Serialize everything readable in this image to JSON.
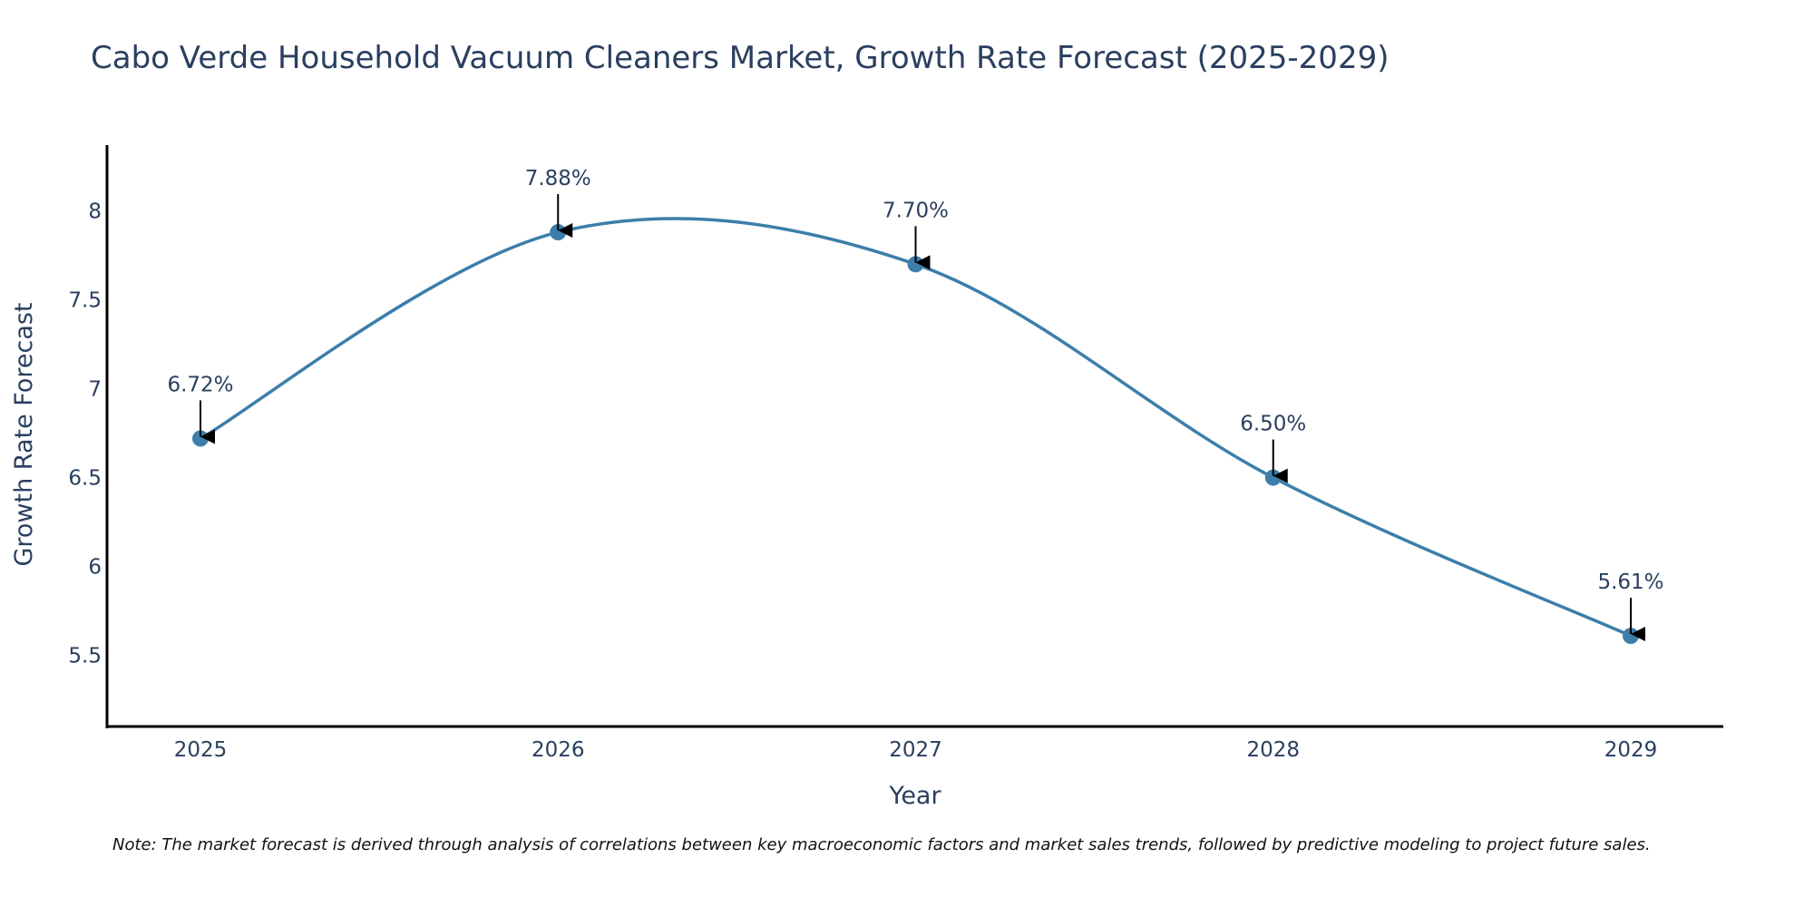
{
  "chart_data": {
    "type": "line",
    "title": "Cabo Verde Household Vacuum Cleaners Market, Growth Rate Forecast (2025-2029)",
    "xlabel": "Year",
    "ylabel": "Growth Rate Forecast",
    "categories": [
      "2025",
      "2026",
      "2027",
      "2028",
      "2029"
    ],
    "series": [
      {
        "name": "Growth Rate Forecast",
        "values": [
          6.72,
          7.88,
          7.7,
          6.5,
          5.61
        ],
        "labels": [
          "6.72%",
          "7.88%",
          "7.70%",
          "6.50%",
          "5.61%"
        ],
        "color": "#3d7eaa"
      }
    ],
    "y_ticks": [
      5.5,
      6,
      6.5,
      7,
      7.5,
      8
    ],
    "y_tick_labels": [
      "5.5",
      "6",
      "6.5",
      "7",
      "7.5",
      "8"
    ],
    "ylim": [
      5.1,
      8.37
    ],
    "grid": false,
    "line_shape": "spline",
    "note": "Note: The market forecast is derived through analysis of correlations between key macroeconomic factors and market sales trends, followed by predictive modeling to project future sales."
  },
  "colors": {
    "text": "#2a3f5f",
    "axis": "#000000",
    "series": "#3d7eaa",
    "arrow": "#000000"
  }
}
